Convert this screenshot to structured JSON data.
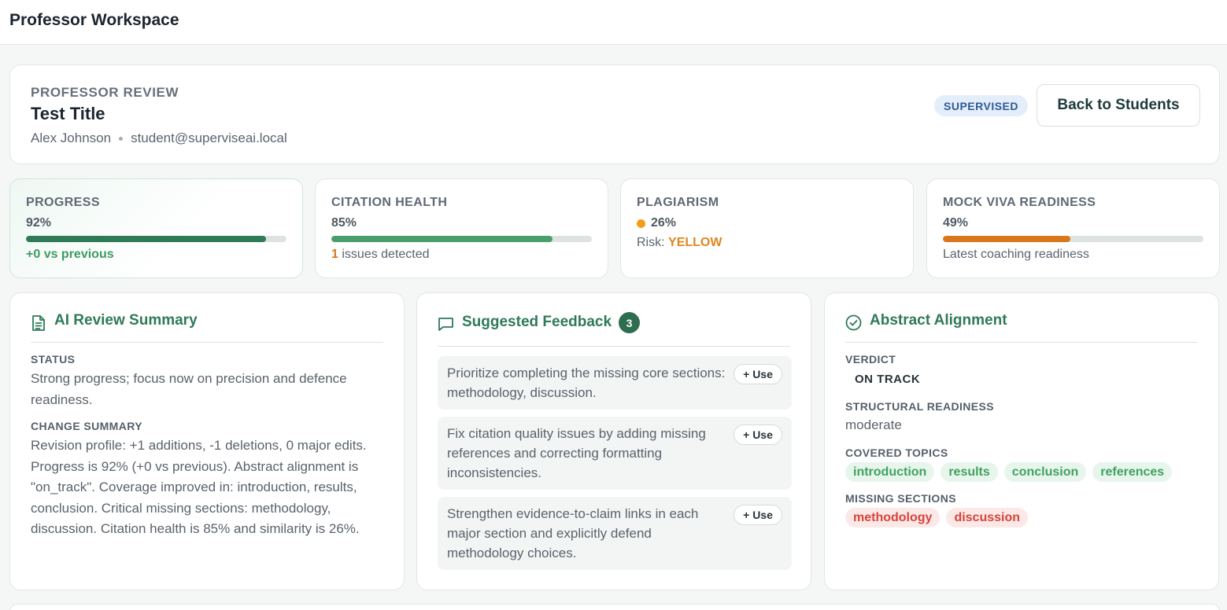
{
  "app": {
    "title": "Professor Workspace"
  },
  "header": {
    "eyebrow": "PROFESSOR REVIEW",
    "title": "Test Title",
    "student_name": "Alex Johnson",
    "student_email": "student@superviseai.local",
    "status_badge": "SUPERVISED",
    "back_label": "Back to Students"
  },
  "metrics": {
    "progress": {
      "label": "PROGRESS",
      "value": "92%",
      "fraction": 0.92,
      "sub": "+0 vs previous",
      "color": "#2f7a57"
    },
    "citation": {
      "label": "CITATION HEALTH",
      "value": "85%",
      "fraction": 0.85,
      "issues_count": "1",
      "issues_text": "issues detected",
      "color": "#4a9e6c"
    },
    "plagiarism": {
      "label": "PLAGIARISM",
      "value": "26%",
      "risk_label": "Risk:",
      "risk_value": "YELLOW",
      "dot_color": "#f29e1c"
    },
    "viva": {
      "label": "MOCK VIVA READINESS",
      "value": "49%",
      "fraction": 0.49,
      "sub": "Latest coaching readiness",
      "color": "#d9781a"
    }
  },
  "ai_summary": {
    "title": "AI Review Summary",
    "status_label": "STATUS",
    "status_text": "Strong progress; focus now on precision and defence readiness.",
    "change_label": "CHANGE SUMMARY",
    "change_text": "Revision profile: +1 additions, -1 deletions, 0 major edits. Progress is 92% (+0 vs previous). Abstract alignment is \"on_track\". Coverage improved in: introduction, results, conclusion. Critical missing sections: methodology, discussion. Citation health is 85% and similarity is 26%."
  },
  "feedback": {
    "title": "Suggested Feedback",
    "count": "3",
    "use_label": "+ Use",
    "items": [
      {
        "text": "Prioritize completing the missing core sections: methodology, discussion."
      },
      {
        "text": "Fix citation quality issues by adding missing references and correcting formatting inconsistencies."
      },
      {
        "text": "Strengthen evidence-to-claim links in each major section and explicitly defend methodology choices."
      }
    ]
  },
  "alignment": {
    "title": "Abstract Alignment",
    "verdict_label": "VERDICT",
    "verdict_value": "ON TRACK",
    "readiness_label": "STRUCTURAL READINESS",
    "readiness_value": "moderate",
    "covered_label": "COVERED TOPICS",
    "covered": [
      "introduction",
      "results",
      "conclusion",
      "references"
    ],
    "missing_label": "MISSING SECTIONS",
    "missing": [
      "methodology",
      "discussion"
    ]
  }
}
